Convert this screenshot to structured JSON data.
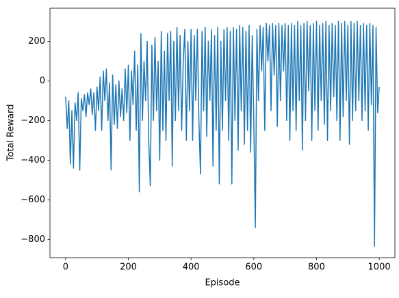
{
  "chart_data": {
    "type": "line",
    "x_label": "Episode",
    "y_label": "Total Reward",
    "color": "#1f77b4",
    "xlim": [
      -50,
      1050
    ],
    "ylim": [
      -892,
      367
    ],
    "xticks": [
      0,
      200,
      400,
      600,
      800,
      1000
    ],
    "yticks": [
      {
        "value": -800,
        "label": "−800"
      },
      {
        "value": -600,
        "label": "−600"
      },
      {
        "value": -400,
        "label": "−400"
      },
      {
        "value": -200,
        "label": "−200"
      },
      0,
      200
    ],
    "x": [
      0,
      5,
      10,
      15,
      20,
      25,
      30,
      35,
      40,
      45,
      50,
      55,
      60,
      65,
      70,
      75,
      80,
      85,
      90,
      95,
      100,
      105,
      110,
      115,
      120,
      125,
      130,
      135,
      140,
      145,
      150,
      155,
      160,
      165,
      170,
      175,
      180,
      185,
      190,
      195,
      200,
      205,
      210,
      215,
      220,
      225,
      230,
      235,
      240,
      245,
      250,
      255,
      260,
      265,
      270,
      275,
      280,
      285,
      290,
      295,
      300,
      305,
      310,
      315,
      320,
      325,
      330,
      335,
      340,
      345,
      350,
      355,
      360,
      365,
      370,
      375,
      380,
      385,
      390,
      395,
      400,
      405,
      410,
      415,
      420,
      425,
      430,
      435,
      440,
      445,
      450,
      455,
      460,
      465,
      470,
      475,
      480,
      485,
      490,
      495,
      500,
      505,
      510,
      515,
      520,
      525,
      530,
      535,
      540,
      545,
      550,
      555,
      560,
      565,
      570,
      575,
      580,
      585,
      590,
      595,
      600,
      605,
      610,
      615,
      620,
      625,
      630,
      635,
      640,
      645,
      650,
      655,
      660,
      665,
      670,
      675,
      680,
      685,
      690,
      695,
      700,
      705,
      710,
      715,
      720,
      725,
      730,
      735,
      740,
      745,
      750,
      755,
      760,
      765,
      770,
      775,
      780,
      785,
      790,
      795,
      800,
      805,
      810,
      815,
      820,
      825,
      830,
      835,
      840,
      845,
      850,
      855,
      860,
      865,
      870,
      875,
      880,
      885,
      890,
      895,
      900,
      905,
      910,
      915,
      920,
      925,
      930,
      935,
      940,
      945,
      950,
      955,
      960,
      965,
      970,
      975,
      980,
      985,
      990,
      995,
      1000
    ],
    "values": [
      -80,
      -240,
      -100,
      -420,
      -150,
      -440,
      -110,
      -200,
      -60,
      -450,
      -90,
      -150,
      -70,
      -180,
      -60,
      -120,
      -40,
      -170,
      -60,
      -250,
      -30,
      -150,
      20,
      -250,
      50,
      -100,
      60,
      -200,
      -10,
      -450,
      30,
      -220,
      -20,
      -240,
      0,
      -180,
      -40,
      -200,
      60,
      -160,
      80,
      -300,
      50,
      -120,
      150,
      -250,
      80,
      -560,
      240,
      -200,
      100,
      -100,
      200,
      -300,
      -530,
      180,
      -200,
      220,
      -150,
      100,
      -400,
      250,
      -250,
      150,
      -300,
      240,
      -100,
      250,
      -430,
      200,
      -200,
      270,
      -150,
      230,
      -250,
      100,
      260,
      -300,
      200,
      -150,
      260,
      -300,
      230,
      -100,
      260,
      -200,
      -470,
      250,
      -150,
      270,
      -280,
      200,
      -100,
      260,
      -430,
      230,
      -250,
      270,
      -520,
      200,
      -250,
      260,
      -100,
      270,
      -300,
      250,
      -520,
      270,
      -200,
      260,
      -350,
      280,
      -150,
      270,
      -320,
      250,
      -250,
      280,
      -360,
      230,
      -200,
      -740,
      260,
      -100,
      280,
      50,
      270,
      -250,
      290,
      100,
      280,
      -150,
      290,
      30,
      280,
      -230,
      290,
      -100,
      280,
      50,
      290,
      -200,
      280,
      -300,
      290,
      -150,
      280,
      -250,
      300,
      -100,
      280,
      -350,
      290,
      -200,
      300,
      -50,
      280,
      -300,
      290,
      -150,
      300,
      -250,
      280,
      -100,
      290,
      -220,
      300,
      -300,
      280,
      -150,
      290,
      -80,
      280,
      -200,
      300,
      -300,
      290,
      -180,
      300,
      -100,
      280,
      -320,
      300,
      -200,
      290,
      -150,
      300,
      -100,
      280,
      -200,
      290,
      -150,
      280,
      -250,
      290,
      -120,
      280,
      -835,
      270,
      -160,
      -30
    ]
  }
}
